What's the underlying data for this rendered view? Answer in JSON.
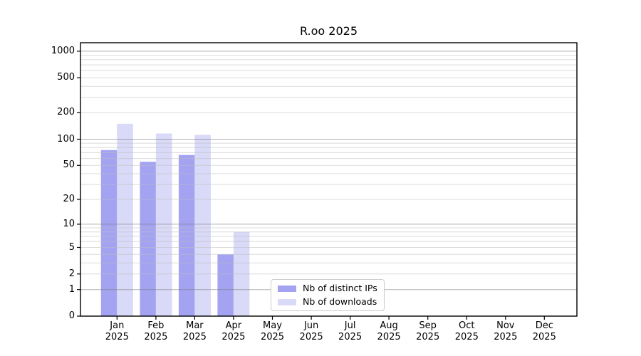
{
  "chart_data": {
    "type": "bar",
    "title": "R.oo 2025",
    "categories": [
      "Jan",
      "Feb",
      "Mar",
      "Apr",
      "May",
      "Jun",
      "Jul",
      "Aug",
      "Sep",
      "Oct",
      "Nov",
      "Dec"
    ],
    "category_year": "2025",
    "series": [
      {
        "name": "Nb of distinct IPs",
        "color": "#a3a3f2",
        "values": [
          75,
          55,
          66,
          4,
          0,
          0,
          0,
          0,
          0,
          0,
          0,
          0
        ]
      },
      {
        "name": "Nb of downloads",
        "color": "#d9d9f8",
        "values": [
          150,
          116,
          112,
          8,
          0,
          0,
          0,
          0,
          0,
          0,
          0,
          0
        ]
      }
    ],
    "y_axis": {
      "scale": "log10(1+x)",
      "ticks": [
        0,
        1,
        2,
        5,
        10,
        20,
        50,
        100,
        200,
        500,
        1000
      ],
      "range": [
        0,
        1000
      ]
    },
    "grid": {
      "major": [
        1,
        10,
        100,
        1000
      ],
      "minor": [
        2,
        3,
        4,
        5,
        6,
        7,
        8,
        9,
        20,
        30,
        40,
        50,
        60,
        70,
        80,
        90,
        200,
        300,
        400,
        500,
        600,
        700,
        800,
        900
      ]
    },
    "legend_position": "inside-bottom-center"
  },
  "colors": {
    "background": "#ffffff",
    "axis": "#000000",
    "major_grid": "#b1b1b1",
    "minor_grid": "#dedede",
    "legend_border": "#cccccc"
  }
}
